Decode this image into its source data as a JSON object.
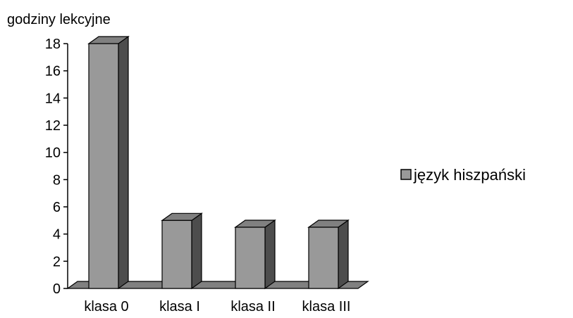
{
  "chart_data": {
    "type": "bar",
    "ylabel": "godziny lekcyjne",
    "xlabel": "",
    "categories": [
      "klasa 0",
      "klasa I",
      "klasa II",
      "klasa III"
    ],
    "series": [
      {
        "name": "język hiszpański",
        "values": [
          18,
          5,
          4.5,
          4.5
        ]
      }
    ],
    "ylim": [
      0,
      18
    ],
    "yticks": [
      0,
      2,
      4,
      6,
      8,
      10,
      12,
      14,
      16,
      18
    ],
    "legend_position": "right",
    "grid": false,
    "style": "3d",
    "colors": {
      "bar_front": "#999999",
      "bar_top": "#808080",
      "bar_side": "#4d4d4d",
      "floor": "#808080",
      "stroke": "#000000"
    }
  }
}
